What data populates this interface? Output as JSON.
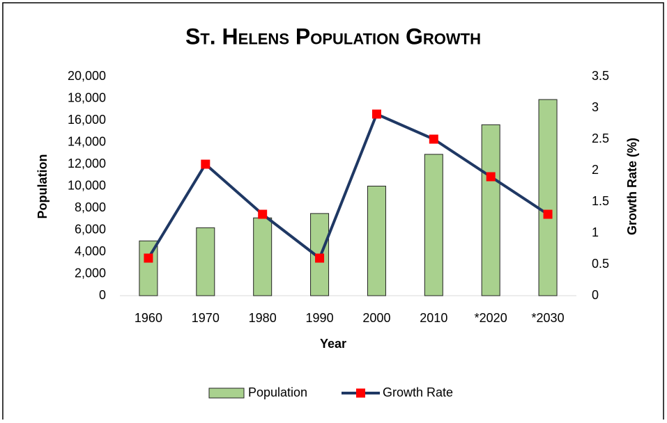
{
  "chart_data": {
    "type": "bar_line",
    "title": "St. Helens Population Growth",
    "x_label": "Year",
    "y_label": "Population",
    "y2_label": "Growth Rate (%)",
    "categories": [
      "1960",
      "1970",
      "1980",
      "1990",
      "2000",
      "2010",
      "*2020",
      "*2030"
    ],
    "series": [
      {
        "name": "Population",
        "type": "bar",
        "color": "#a9d18e",
        "values": [
          5000,
          6200,
          7100,
          7500,
          10000,
          12900,
          15600,
          17900
        ]
      },
      {
        "name": "Growth Rate",
        "type": "line",
        "axis": "y2",
        "color": "#1f3864",
        "marker_color": "#ff0000",
        "values": [
          0.6,
          2.1,
          1.3,
          0.6,
          2.9,
          2.5,
          1.9,
          1.3
        ]
      }
    ],
    "ylim": [
      0,
      20000
    ],
    "yticks": [
      0,
      {
        "value": 2000,
        "label": "2,000"
      },
      {
        "value": 4000,
        "label": "4,000"
      },
      {
        "value": 6000,
        "label": "6,000"
      },
      {
        "value": 8000,
        "label": "8,000"
      },
      {
        "value": 10000,
        "label": "10,000"
      },
      {
        "value": 12000,
        "label": "12,000"
      },
      {
        "value": 14000,
        "label": "14,000"
      },
      {
        "value": 16000,
        "label": "16,000"
      },
      {
        "value": 18000,
        "label": "18,000"
      },
      {
        "value": 20000,
        "label": "20,000"
      }
    ],
    "y2lim": [
      0,
      3.5
    ],
    "y2ticks": [
      0,
      0.5,
      1,
      1.5,
      2,
      2.5,
      3,
      3.5
    ],
    "grid": false,
    "legend": "bottom"
  }
}
